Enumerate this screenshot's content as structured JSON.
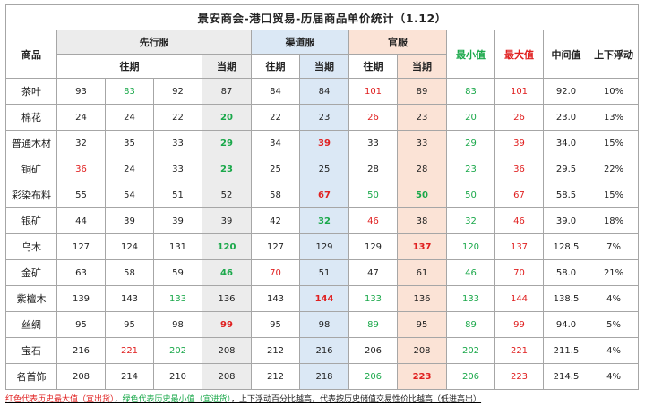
{
  "title": "景安商会-港口贸易-历届商品单价统计（1.12）",
  "headers": {
    "item": "商品",
    "group1": "先行服",
    "group2": "渠道服",
    "group3": "官服",
    "past": "往期",
    "current": "当期",
    "min": "最小值",
    "max": "最大值",
    "median": "中间值",
    "float": "上下浮动"
  },
  "rows": [
    {
      "name": "茶叶",
      "x1": "93",
      "x2": "83",
      "x3": "92",
      "x4": "87",
      "q1": "84",
      "q2": "84",
      "g1": "101",
      "g2": "89",
      "min": "83",
      "max": "101",
      "mid": "92.0",
      "fl": "10%"
    },
    {
      "name": "棉花",
      "x1": "24",
      "x2": "24",
      "x3": "22",
      "x4": "20",
      "q1": "22",
      "q2": "23",
      "g1": "26",
      "g2": "23",
      "min": "20",
      "max": "26",
      "mid": "23.0",
      "fl": "13%"
    },
    {
      "name": "普通木材",
      "x1": "32",
      "x2": "35",
      "x3": "33",
      "x4": "29",
      "q1": "34",
      "q2": "39",
      "g1": "33",
      "g2": "33",
      "min": "29",
      "max": "39",
      "mid": "34.0",
      "fl": "15%"
    },
    {
      "name": "铜矿",
      "x1": "36",
      "x2": "24",
      "x3": "33",
      "x4": "23",
      "q1": "25",
      "q2": "25",
      "g1": "28",
      "g2": "28",
      "min": "23",
      "max": "36",
      "mid": "29.5",
      "fl": "22%"
    },
    {
      "name": "彩染布料",
      "x1": "55",
      "x2": "54",
      "x3": "51",
      "x4": "52",
      "q1": "58",
      "q2": "67",
      "g1": "50",
      "g2": "50",
      "min": "50",
      "max": "67",
      "mid": "58.5",
      "fl": "15%"
    },
    {
      "name": "银矿",
      "x1": "44",
      "x2": "39",
      "x3": "39",
      "x4": "39",
      "q1": "42",
      "q2": "32",
      "g1": "46",
      "g2": "38",
      "min": "32",
      "max": "46",
      "mid": "39.0",
      "fl": "18%"
    },
    {
      "name": "乌木",
      "x1": "127",
      "x2": "124",
      "x3": "131",
      "x4": "120",
      "q1": "127",
      "q2": "129",
      "g1": "129",
      "g2": "137",
      "min": "120",
      "max": "137",
      "mid": "128.5",
      "fl": "7%"
    },
    {
      "name": "金矿",
      "x1": "63",
      "x2": "58",
      "x3": "59",
      "x4": "46",
      "q1": "70",
      "q2": "51",
      "g1": "47",
      "g2": "61",
      "min": "46",
      "max": "70",
      "mid": "58.0",
      "fl": "21%"
    },
    {
      "name": "紫檀木",
      "x1": "139",
      "x2": "143",
      "x3": "133",
      "x4": "136",
      "q1": "143",
      "q2": "144",
      "g1": "133",
      "g2": "136",
      "min": "133",
      "max": "144",
      "mid": "138.5",
      "fl": "4%"
    },
    {
      "name": "丝绸",
      "x1": "95",
      "x2": "95",
      "x3": "98",
      "x4": "99",
      "q1": "95",
      "q2": "98",
      "g1": "89",
      "g2": "95",
      "min": "89",
      "max": "99",
      "mid": "94.0",
      "fl": "5%"
    },
    {
      "name": "宝石",
      "x1": "216",
      "x2": "221",
      "x3": "202",
      "x4": "208",
      "q1": "212",
      "q2": "216",
      "g1": "206",
      "g2": "208",
      "min": "202",
      "max": "221",
      "mid": "211.5",
      "fl": "4%"
    },
    {
      "name": "名首饰",
      "x1": "208",
      "x2": "214",
      "x3": "210",
      "x4": "208",
      "q1": "212",
      "q2": "218",
      "g1": "206",
      "g2": "223",
      "min": "206",
      "max": "223",
      "mid": "214.5",
      "fl": "4%"
    }
  ],
  "colors": {
    "red": "#e02020",
    "green": "#1aa84a",
    "xian_bg": "#ececec",
    "qu_bg": "#dbe8f5",
    "guan_bg": "#fbe3d6"
  },
  "footnote": {
    "red_text": "红色代表历史最大值（宜出货）",
    "sep": "，",
    "green_text": "绿色代表历史最小值（宜进货）",
    "rest": "，上下浮动百分比越高，代表按历史储值交易性价比越高（低进高出）"
  }
}
